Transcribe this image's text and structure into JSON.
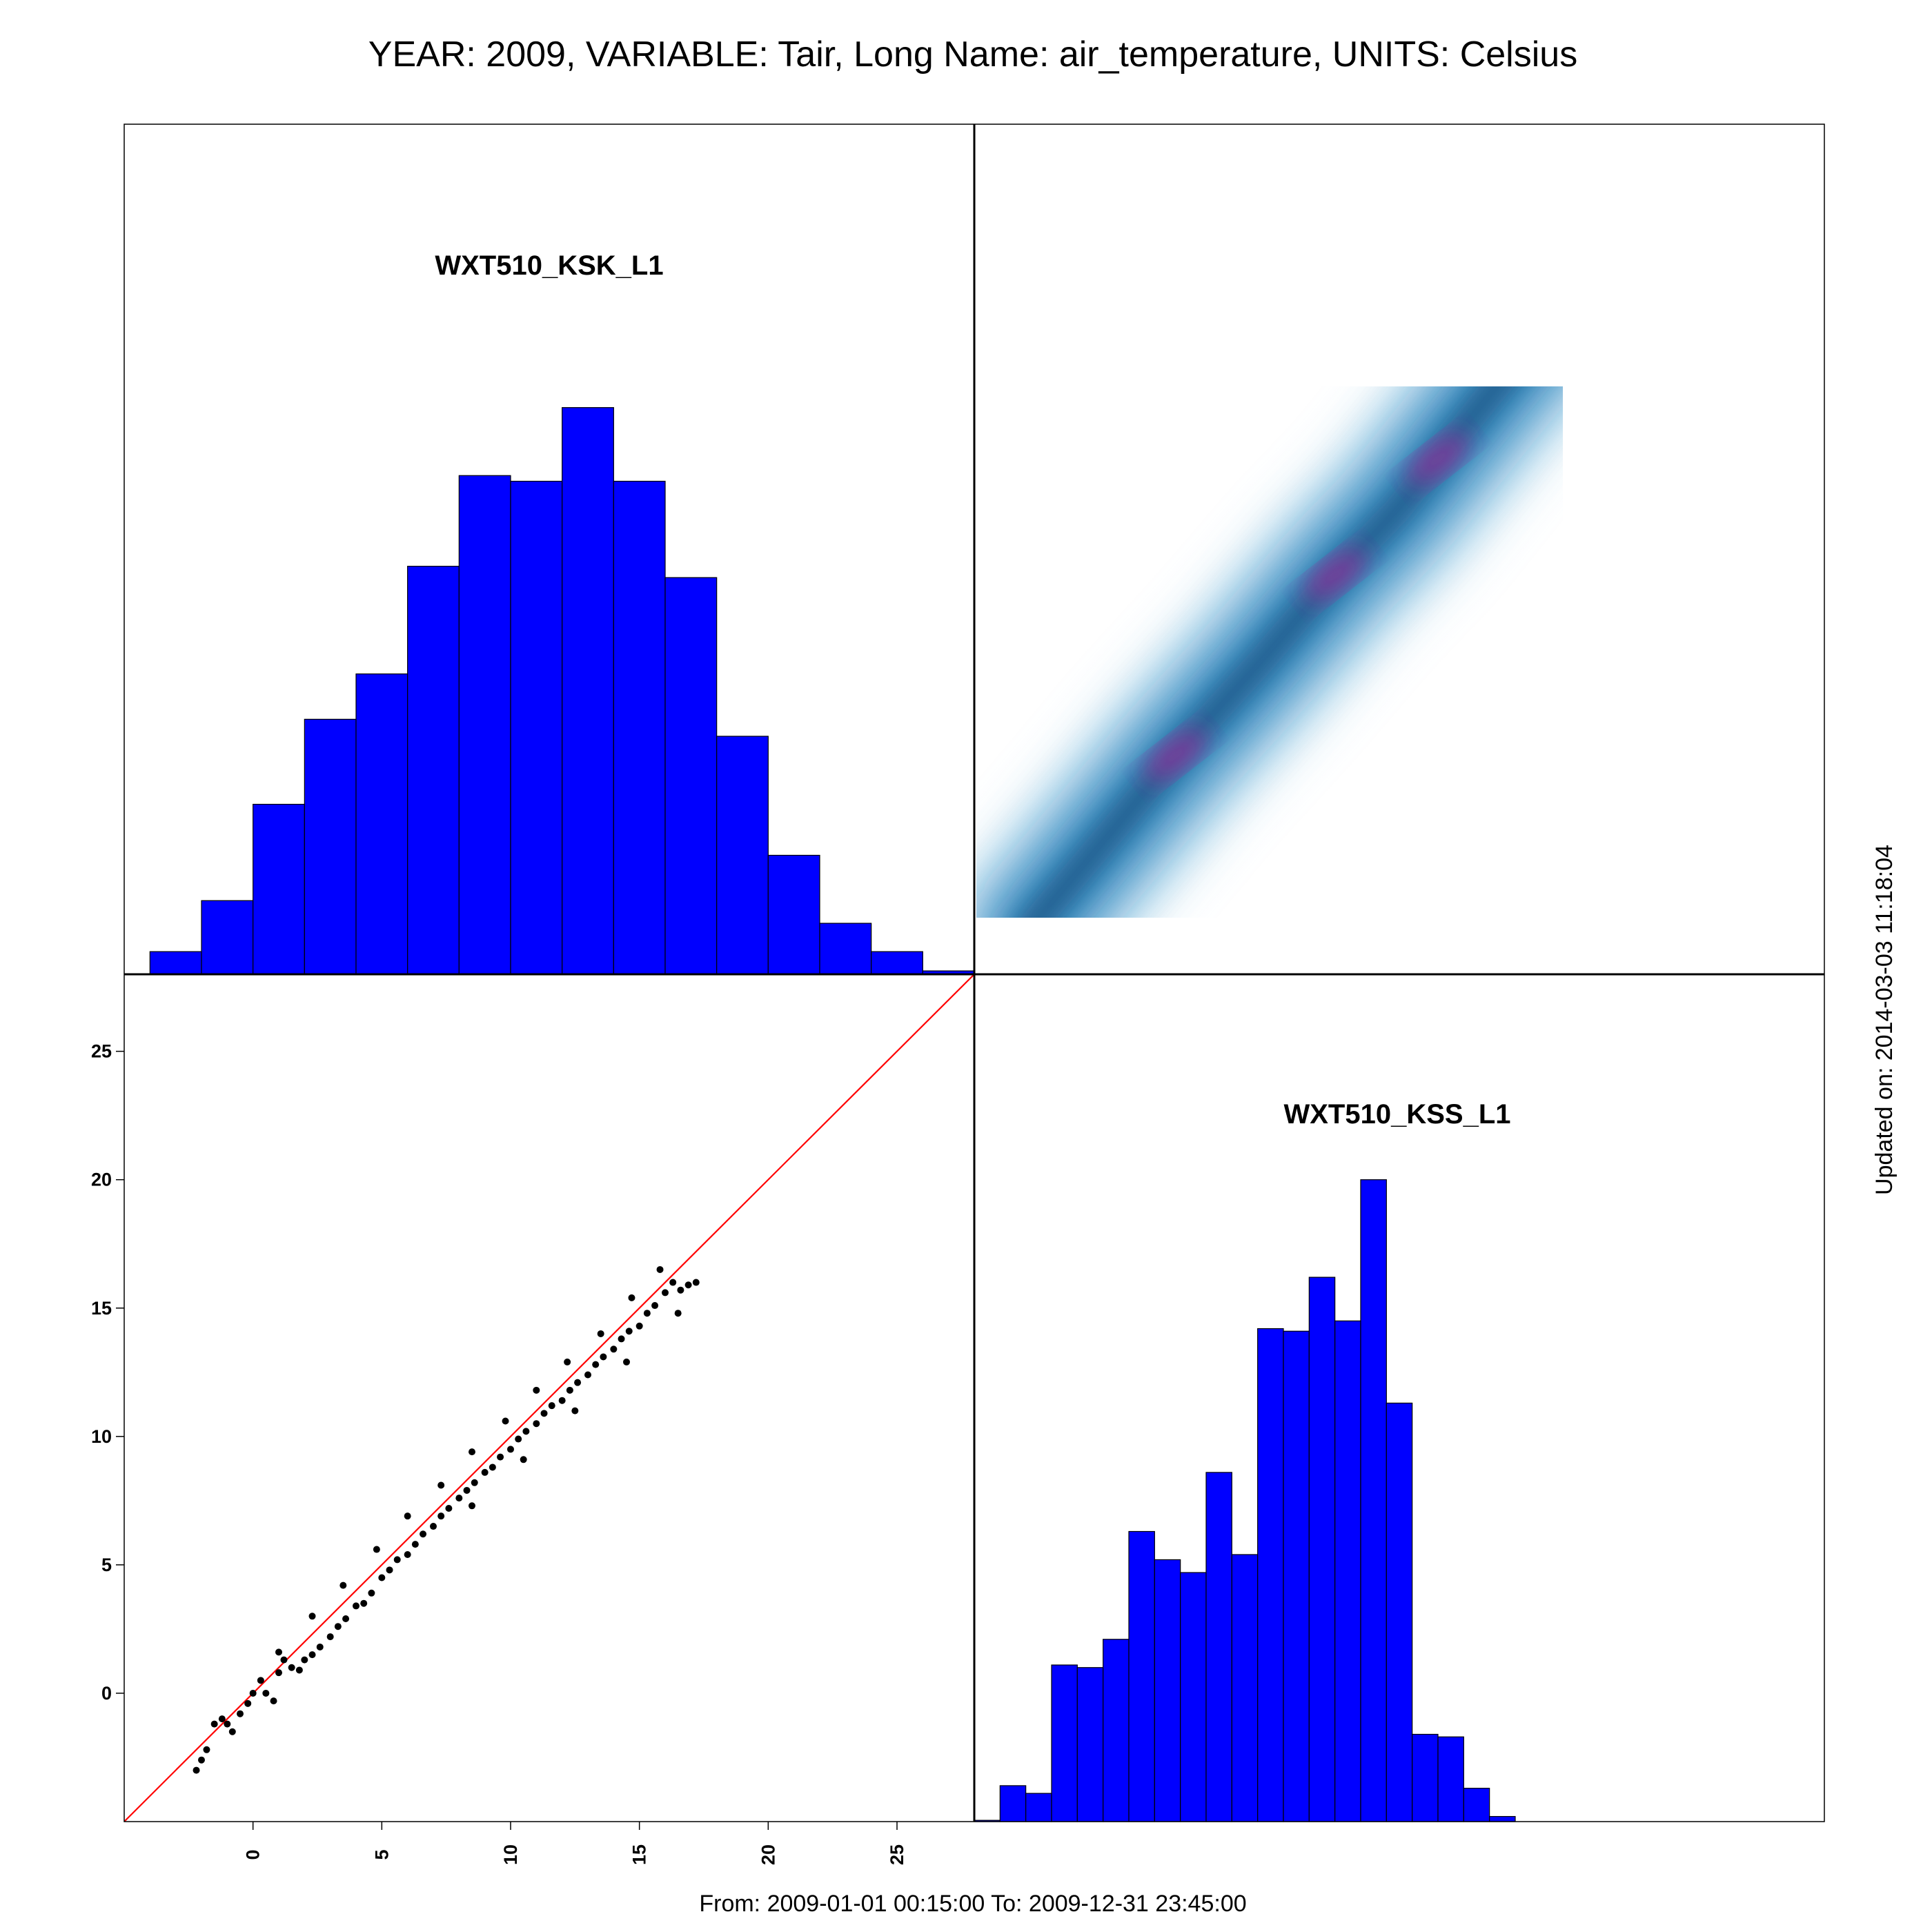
{
  "title": "YEAR: 2009, VARIABLE: Tair, Long Name: air_temperature, UNITS: Celsius",
  "footer": "From: 2009-01-01 00:15:00 To: 2009-12-31 23:45:00",
  "updated": "Updated on: 2014-03-03 11:18:04",
  "colors": {
    "histogram_fill": "#0000ff",
    "identity_line": "#ff0000",
    "points": "#000000",
    "density_low": "#ffffff",
    "density_mid": "#1f78b4",
    "density_high": "#9b2a9b"
  },
  "chart_data": [
    {
      "type": "bar",
      "panel": "top-left",
      "title": "WXT510_KSK_L1",
      "bin_edges": [
        -4,
        -2,
        0,
        2,
        4,
        6,
        8,
        10,
        12,
        14,
        16,
        18,
        20,
        22,
        24,
        26,
        28
      ],
      "values": [
        4,
        13,
        30,
        45,
        53,
        72,
        88,
        87,
        100,
        87,
        70,
        42,
        21,
        9,
        4,
        0.6
      ],
      "value_scale": "relative",
      "ylim": [
        0,
        150
      ],
      "xlim": [
        -5,
        28
      ]
    },
    {
      "type": "heatmap",
      "panel": "top-right",
      "description_type": "smoothed 2D density of WXT510_KSS_L1 vs WXT510_KSK_L1",
      "xlim": [
        -5,
        28
      ],
      "ylim": [
        -5,
        28
      ],
      "density_ridge": [
        {
          "x": -3.4,
          "y": -3.0,
          "w": 0.55
        },
        {
          "x": 0.5,
          "y": 0.3,
          "w": 0.65
        },
        {
          "x": 3.5,
          "y": 2.8,
          "w": 0.9
        },
        {
          "x": 7.0,
          "y": 6.0,
          "w": 0.75
        },
        {
          "x": 10.5,
          "y": 9.0,
          "w": 0.95
        },
        {
          "x": 13.0,
          "y": 11.4,
          "w": 0.85
        },
        {
          "x": 15.0,
          "y": 13.0,
          "w": 0.95
        },
        {
          "x": 17.5,
          "y": 15.0,
          "w": 0.65
        },
        {
          "x": 20.5,
          "y": 17.5,
          "w": 0.35
        }
      ]
    },
    {
      "type": "scatter",
      "panel": "bottom-left",
      "xlabel": "",
      "ylabel": "",
      "xlim": [
        -5,
        28
      ],
      "ylim": [
        -5,
        28
      ],
      "x_ticks": [
        "0",
        "5",
        "10",
        "15",
        "20",
        "25"
      ],
      "y_ticks": [
        "0",
        "5",
        "10",
        "15",
        "20",
        "25"
      ],
      "x_tick_values": [
        0,
        5,
        10,
        15,
        20,
        25
      ],
      "y_tick_values": [
        0,
        5,
        10,
        15,
        20,
        25
      ],
      "identity_line": [
        [
          -5,
          -5
        ],
        [
          28,
          28
        ]
      ],
      "points": [
        [
          -2.2,
          -3.0
        ],
        [
          -2.0,
          -2.6
        ],
        [
          -1.8,
          -2.2
        ],
        [
          -1.5,
          -1.2
        ],
        [
          -1.2,
          -1.0
        ],
        [
          -1.0,
          -1.2
        ],
        [
          -0.8,
          -1.5
        ],
        [
          -0.5,
          -0.8
        ],
        [
          -0.2,
          -0.4
        ],
        [
          0.0,
          0.0
        ],
        [
          0.3,
          0.5
        ],
        [
          0.5,
          0.0
        ],
        [
          0.8,
          -0.3
        ],
        [
          1.0,
          0.8
        ],
        [
          1.2,
          1.3
        ],
        [
          1.5,
          1.0
        ],
        [
          1.8,
          0.9
        ],
        [
          2.0,
          1.3
        ],
        [
          2.3,
          1.5
        ],
        [
          2.6,
          1.8
        ],
        [
          3.0,
          2.2
        ],
        [
          3.3,
          2.6
        ],
        [
          3.6,
          2.9
        ],
        [
          4.0,
          3.4
        ],
        [
          4.3,
          3.5
        ],
        [
          4.6,
          3.9
        ],
        [
          5.0,
          4.5
        ],
        [
          5.3,
          4.8
        ],
        [
          5.6,
          5.2
        ],
        [
          6.0,
          5.4
        ],
        [
          6.3,
          5.8
        ],
        [
          6.6,
          6.2
        ],
        [
          7.0,
          6.5
        ],
        [
          7.3,
          6.9
        ],
        [
          7.6,
          7.2
        ],
        [
          8.0,
          7.6
        ],
        [
          8.3,
          7.9
        ],
        [
          8.6,
          8.2
        ],
        [
          9.0,
          8.6
        ],
        [
          9.3,
          8.8
        ],
        [
          9.6,
          9.2
        ],
        [
          10.0,
          9.5
        ],
        [
          10.3,
          9.9
        ],
        [
          10.6,
          10.2
        ],
        [
          11.0,
          10.5
        ],
        [
          11.3,
          10.9
        ],
        [
          11.6,
          11.2
        ],
        [
          12.0,
          11.4
        ],
        [
          12.3,
          11.8
        ],
        [
          12.6,
          12.1
        ],
        [
          13.0,
          12.4
        ],
        [
          13.3,
          12.8
        ],
        [
          13.6,
          13.1
        ],
        [
          14.0,
          13.4
        ],
        [
          14.3,
          13.8
        ],
        [
          14.6,
          14.1
        ],
        [
          15.0,
          14.3
        ],
        [
          15.3,
          14.8
        ],
        [
          15.6,
          15.1
        ],
        [
          16.0,
          15.6
        ],
        [
          16.3,
          16.0
        ],
        [
          16.6,
          15.7
        ],
        [
          16.9,
          15.9
        ],
        [
          17.2,
          16.0
        ],
        [
          15.8,
          16.5
        ],
        [
          14.7,
          15.4
        ],
        [
          13.5,
          14.0
        ],
        [
          12.2,
          12.9
        ],
        [
          11.0,
          11.8
        ],
        [
          9.8,
          10.6
        ],
        [
          8.5,
          9.4
        ],
        [
          7.3,
          8.1
        ],
        [
          6.0,
          6.9
        ],
        [
          4.8,
          5.6
        ],
        [
          3.5,
          4.2
        ],
        [
          2.3,
          3.0
        ],
        [
          1.0,
          1.6
        ],
        [
          12.5,
          11.0
        ],
        [
          14.5,
          12.9
        ],
        [
          16.5,
          14.8
        ],
        [
          10.5,
          9.1
        ],
        [
          8.5,
          7.3
        ]
      ]
    },
    {
      "type": "bar",
      "panel": "bottom-right",
      "title": "WXT510_KSS_L1",
      "bin_edges": [
        -5,
        -4,
        -3,
        -2,
        -1,
        0,
        1,
        2,
        3,
        4,
        5,
        6,
        7,
        8,
        9,
        10,
        11,
        12,
        13,
        14,
        15,
        16,
        17
      ],
      "values": [
        0.5,
        14,
        11,
        61,
        60,
        71,
        113,
        102,
        97,
        136,
        104,
        192,
        191,
        212,
        195,
        250,
        163,
        34,
        33,
        13,
        2,
        0
      ],
      "value_scale": "relative",
      "ylim": [
        0,
        330
      ],
      "xlim": [
        -5,
        28
      ]
    }
  ]
}
